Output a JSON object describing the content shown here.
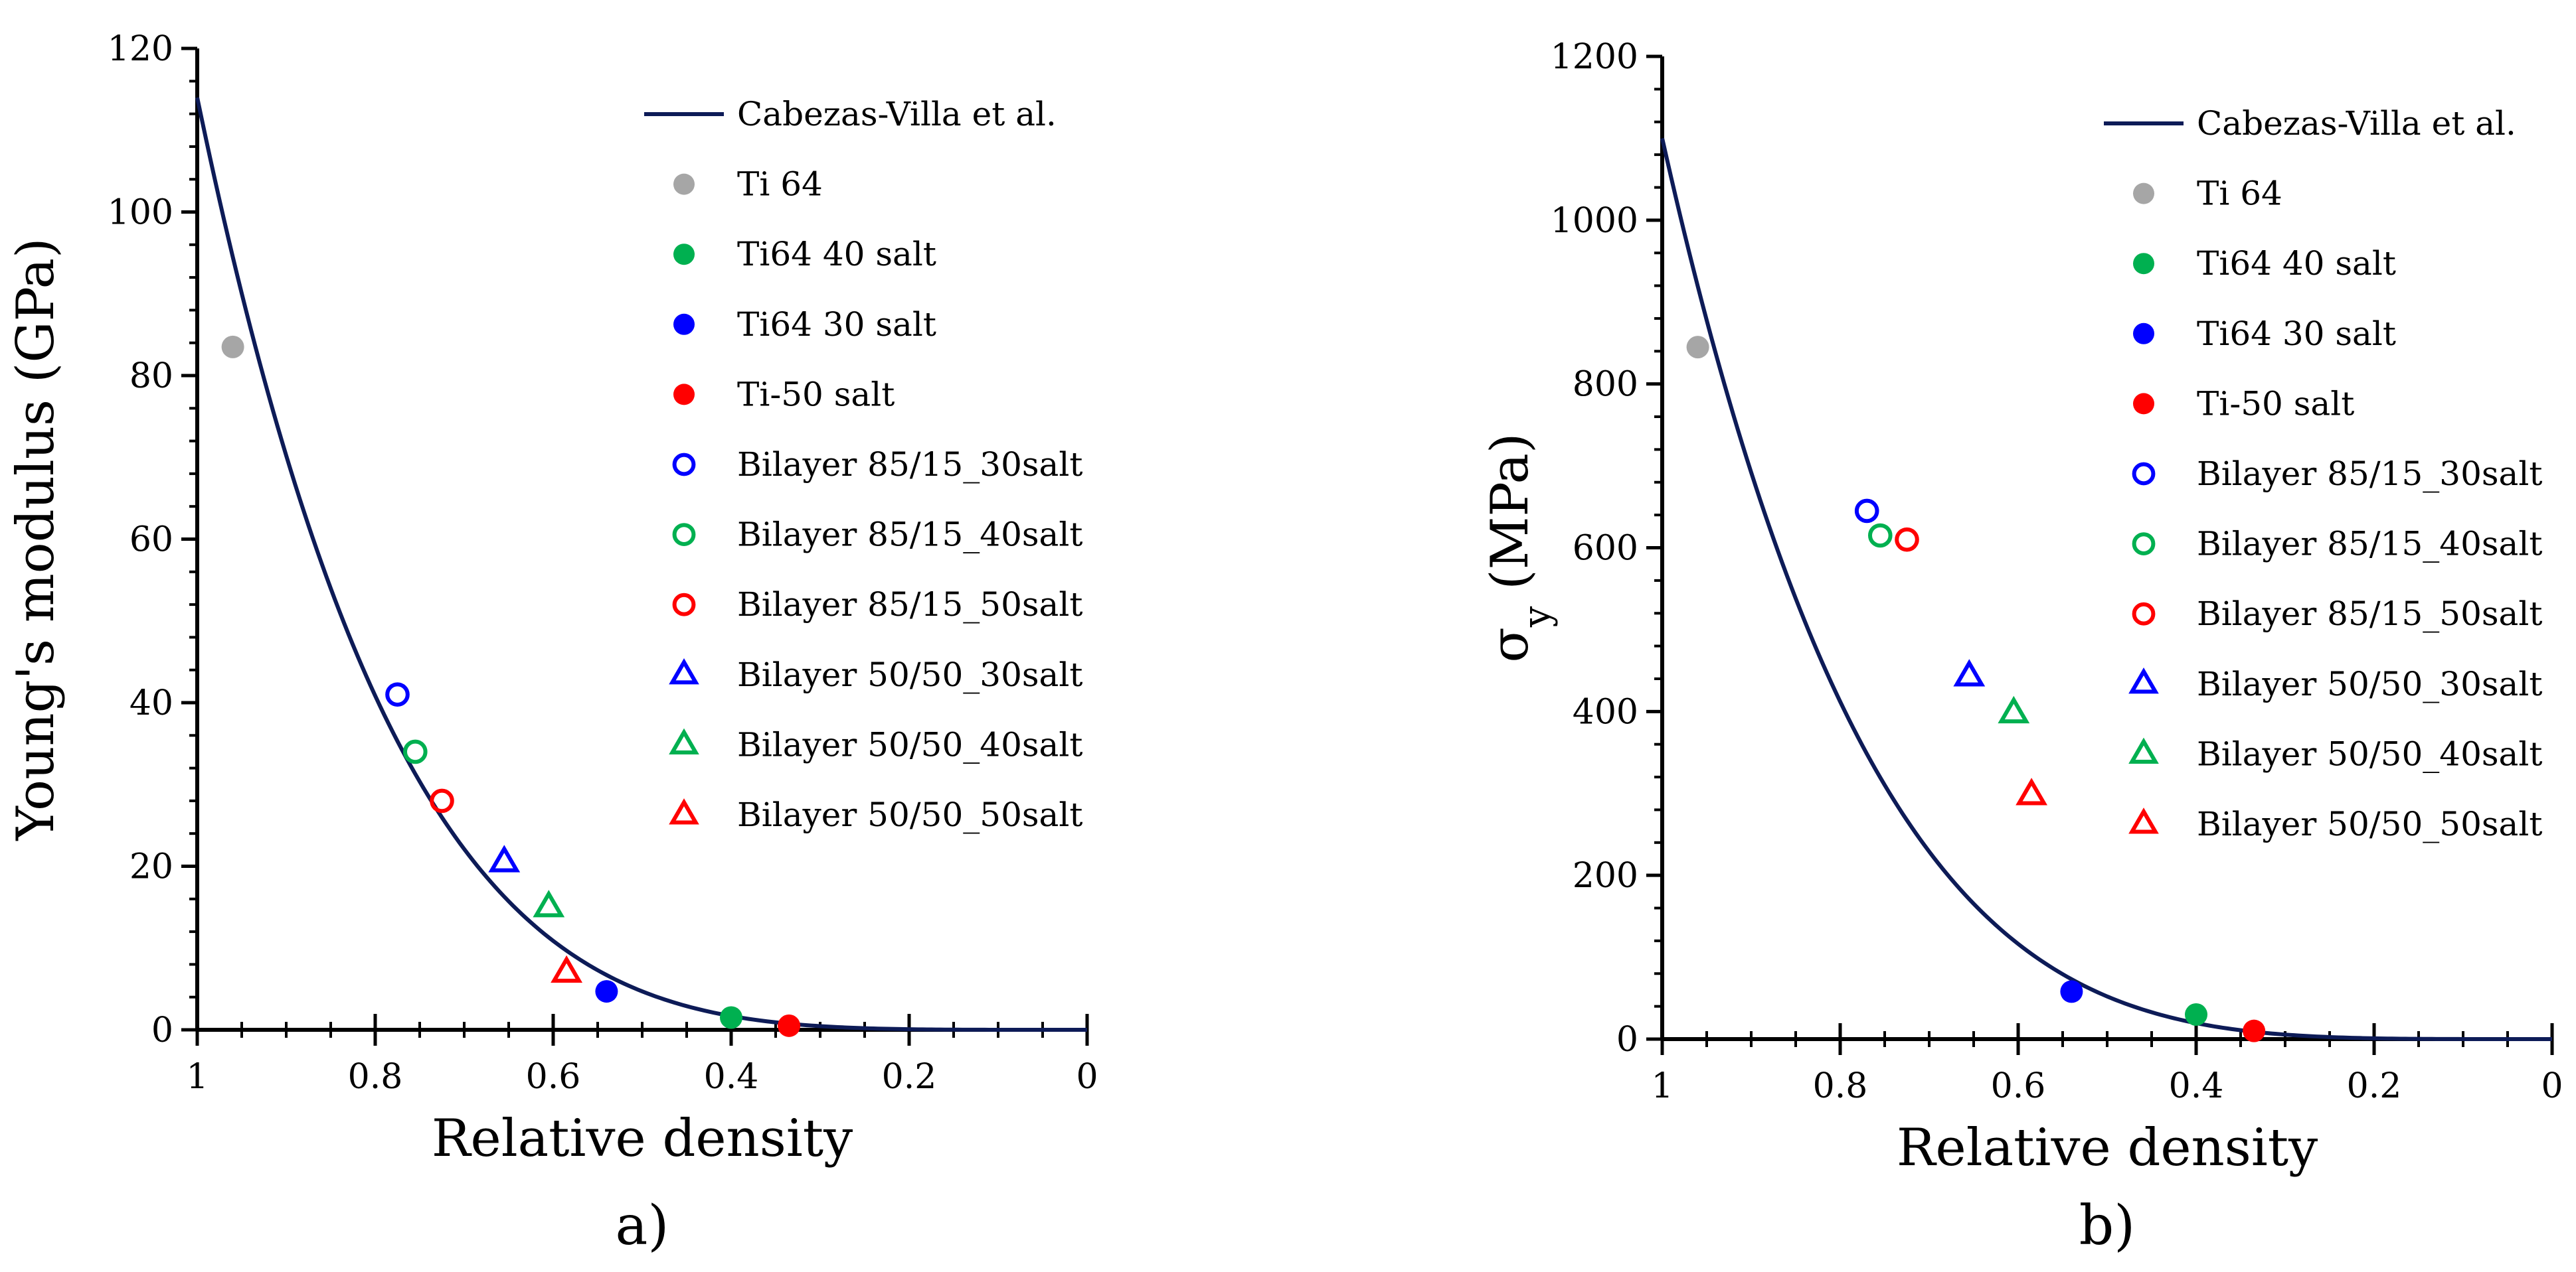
{
  "colors": {
    "curve": "#0d1b57",
    "ti64": "#a6a6a6",
    "green": "#00b050",
    "blue": "#0000ff",
    "red": "#ff0000",
    "axis": "#000000"
  },
  "legend_entries": [
    {
      "label": "Cabezas-Villa et al.",
      "marker": "line",
      "color_key": "curve"
    },
    {
      "label": "Ti 64",
      "marker": "filled-circle",
      "color_key": "ti64"
    },
    {
      "label": "Ti64 40 salt",
      "marker": "filled-circle",
      "color_key": "green"
    },
    {
      "label": "Ti64 30 salt",
      "marker": "filled-circle",
      "color_key": "blue"
    },
    {
      "label": "Ti-50 salt",
      "marker": "filled-circle",
      "color_key": "red"
    },
    {
      "label": "Bilayer 85/15_30salt",
      "marker": "open-circle",
      "color_key": "blue"
    },
    {
      "label": "Bilayer 85/15_40salt",
      "marker": "open-circle",
      "color_key": "green"
    },
    {
      "label": "Bilayer 85/15_50salt",
      "marker": "open-circle",
      "color_key": "red"
    },
    {
      "label": "Bilayer 50/50_30salt",
      "marker": "open-triangle",
      "color_key": "blue"
    },
    {
      "label": "Bilayer 50/50_40salt",
      "marker": "open-triangle",
      "color_key": "green"
    },
    {
      "label": "Bilayer 50/50_50salt",
      "marker": "open-triangle",
      "color_key": "red"
    }
  ],
  "chart_data": [
    {
      "type": "scatter",
      "panel_label": "a)",
      "xlabel": "Relative density",
      "ylabel": "Young's modulus (GPa)",
      "xlim": [
        1,
        0
      ],
      "ylim": [
        0,
        120
      ],
      "xticks": [
        1,
        0.8,
        0.6,
        0.4,
        0.2,
        0
      ],
      "xtick_labels": [
        "1",
        "0.8",
        "0.6",
        "0.4",
        "0.2",
        "0"
      ],
      "yticks": [
        0,
        20,
        40,
        60,
        80,
        100,
        120
      ],
      "ytick_labels": [
        "0",
        "20",
        "40",
        "60",
        "80",
        "100",
        "120"
      ],
      "grid": false,
      "legend_position": "top-right",
      "curve": {
        "name": "Cabezas-Villa et al.",
        "y_at_1": 114,
        "exponent": 4.6
      },
      "series": [
        {
          "name": "Ti 64",
          "x": [
            0.96
          ],
          "y": [
            83.5
          ]
        },
        {
          "name": "Ti64 40 salt",
          "x": [
            0.4
          ],
          "y": [
            1.5
          ]
        },
        {
          "name": "Ti64 30 salt",
          "x": [
            0.54
          ],
          "y": [
            4.7
          ]
        },
        {
          "name": "Ti-50 salt",
          "x": [
            0.335
          ],
          "y": [
            0.5
          ]
        },
        {
          "name": "Bilayer 85/15_30salt",
          "x": [
            0.775
          ],
          "y": [
            41
          ]
        },
        {
          "name": "Bilayer 85/15_40salt",
          "x": [
            0.755
          ],
          "y": [
            34
          ]
        },
        {
          "name": "Bilayer 85/15_50salt",
          "x": [
            0.725
          ],
          "y": [
            28
          ]
        },
        {
          "name": "Bilayer 50/50_30salt",
          "x": [
            0.655
          ],
          "y": [
            20.5
          ]
        },
        {
          "name": "Bilayer 50/50_40salt",
          "x": [
            0.605
          ],
          "y": [
            15
          ]
        },
        {
          "name": "Bilayer 50/50_50salt",
          "x": [
            0.585
          ],
          "y": [
            7
          ]
        }
      ]
    },
    {
      "type": "scatter",
      "panel_label": "b)",
      "xlabel": "Relative density",
      "ylabel": "σ",
      "ylabel_subscript": "y",
      "ylabel_unit": " (MPa)",
      "xlim": [
        1,
        0
      ],
      "ylim": [
        0,
        1200
      ],
      "xticks": [
        1,
        0.8,
        0.6,
        0.4,
        0.2,
        0
      ],
      "xtick_labels": [
        "1",
        "0.8",
        "0.6",
        "0.4",
        "0.2",
        "0"
      ],
      "yticks": [
        0,
        200,
        400,
        600,
        800,
        1000,
        1200
      ],
      "ytick_labels": [
        "0",
        "200",
        "400",
        "600",
        "800",
        "1000",
        "1200"
      ],
      "grid": false,
      "legend_position": "top-right",
      "curve": {
        "name": "Cabezas-Villa et al.",
        "y_at_1": 1100,
        "exponent": 4.4
      },
      "series": [
        {
          "name": "Ti 64",
          "x": [
            0.96
          ],
          "y": [
            845
          ]
        },
        {
          "name": "Ti64 40 salt",
          "x": [
            0.4
          ],
          "y": [
            30
          ]
        },
        {
          "name": "Ti64 30 salt",
          "x": [
            0.54
          ],
          "y": [
            58
          ]
        },
        {
          "name": "Ti-50 salt",
          "x": [
            0.335
          ],
          "y": [
            10
          ]
        },
        {
          "name": "Bilayer 85/15_30salt",
          "x": [
            0.77
          ],
          "y": [
            645
          ]
        },
        {
          "name": "Bilayer 85/15_40salt",
          "x": [
            0.755
          ],
          "y": [
            615
          ]
        },
        {
          "name": "Bilayer 85/15_50salt",
          "x": [
            0.725
          ],
          "y": [
            610
          ]
        },
        {
          "name": "Bilayer 50/50_30salt",
          "x": [
            0.655
          ],
          "y": [
            443
          ]
        },
        {
          "name": "Bilayer 50/50_40salt",
          "x": [
            0.605
          ],
          "y": [
            398
          ]
        },
        {
          "name": "Bilayer 50/50_50salt",
          "x": [
            0.585
          ],
          "y": [
            298
          ]
        }
      ]
    }
  ]
}
